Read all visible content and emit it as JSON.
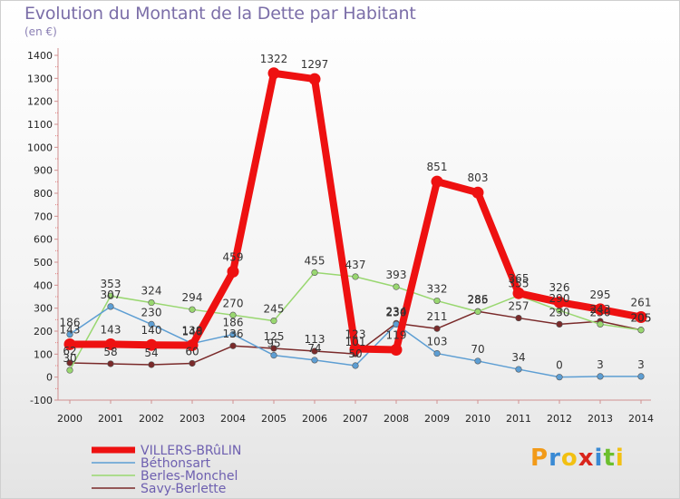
{
  "title": "Evolution du Montant de la Dette par Habitant",
  "subtitle": "(en €)",
  "logo": {
    "text": "Proxiti",
    "colors": [
      "#f29a18",
      "#3a8ad4",
      "#f2c012",
      "#d9251c",
      "#3a8ad4",
      "#6cbf2e",
      "#f2c012"
    ]
  },
  "chart_data": {
    "type": "line",
    "x": [
      "2000",
      "2001",
      "2002",
      "2003",
      "2004",
      "2005",
      "2006",
      "2007",
      "2008",
      "2009",
      "2010",
      "2011",
      "2012",
      "2013",
      "2014"
    ],
    "ylim": [
      -100,
      1400
    ],
    "yticks": [
      "-100",
      "0",
      "100",
      "200",
      "300",
      "400",
      "500",
      "600",
      "700",
      "800",
      "900",
      "1000",
      "1100",
      "1200",
      "1300",
      "1400"
    ],
    "grid": false,
    "legend_position": "bottom-left",
    "series": [
      {
        "name": "Savy-Berlette",
        "color": "#7a2a2a",
        "values": [
          62,
          58,
          54,
          60,
          136,
          125,
          113,
          101,
          234,
          211,
          286,
          257,
          230,
          243,
          205
        ],
        "labels": [
          "62",
          "58",
          "54",
          "60",
          "136",
          "125",
          "113",
          "101",
          "234",
          "211",
          "286",
          "257",
          "230",
          "243",
          "205"
        ]
      },
      {
        "name": "Berles-Monchel",
        "color": "#99d770",
        "values": [
          30,
          353,
          324,
          294,
          270,
          245,
          455,
          437,
          393,
          332,
          285,
          355,
          290,
          230,
          205
        ],
        "labels": [
          "30",
          "353",
          "324",
          "294",
          "270",
          "245",
          "455",
          "437",
          "393",
          "332",
          "285",
          "355",
          "290",
          "230",
          "205"
        ]
      },
      {
        "name": "Béthonsart",
        "color": "#5d9ed3",
        "values": [
          186,
          307,
          230,
          146,
          186,
          95,
          74,
          50,
          230,
          103,
          70,
          34,
          0,
          3,
          3
        ],
        "labels": [
          "186",
          "307",
          "230",
          "146",
          "186",
          "95",
          "74",
          "50",
          "230",
          "103",
          "70",
          "34",
          "0",
          "3",
          "3"
        ]
      },
      {
        "name": "VILLERS-BRûLIN",
        "color": "#ee1111",
        "values": [
          143,
          143,
          140,
          139,
          459,
          1322,
          1297,
          123,
          119,
          851,
          803,
          365,
          326,
          295,
          261
        ],
        "labels": [
          "143",
          "143",
          "140",
          "139",
          "459",
          "1322",
          "1297",
          "123",
          "119",
          "851",
          "803",
          "365",
          "326",
          "295",
          "261"
        ]
      }
    ],
    "legend": [
      "VILLERS-BRûLIN",
      "Béthonsart",
      "Berles-Monchel",
      "Savy-Berlette"
    ]
  }
}
